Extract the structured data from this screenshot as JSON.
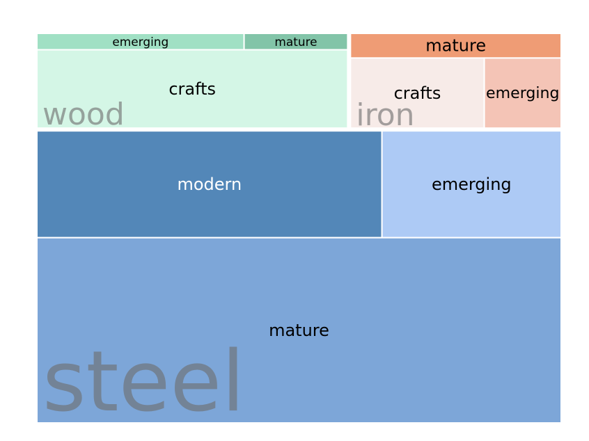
{
  "chart_data": {
    "type": "treemap",
    "title": "",
    "groups": [
      {
        "name": "wood",
        "children": [
          {
            "name": "emerging",
            "value": 1.7,
            "color": "#a0e0c4"
          },
          {
            "name": "mature",
            "value": 0.85,
            "color": "#82c4a8"
          },
          {
            "name": "crafts",
            "value": 12.2,
            "color": "#d4f6e6"
          }
        ]
      },
      {
        "name": "iron",
        "children": [
          {
            "name": "mature",
            "value": 2.6,
            "color": "#ef9c75"
          },
          {
            "name": "crafts",
            "value": 4.7,
            "color": "#f7ebe8"
          },
          {
            "name": "emerging",
            "value": 2.7,
            "color": "#f4c4b6"
          }
        ]
      },
      {
        "name": "steel",
        "children": [
          {
            "name": "modern",
            "value": 18.1,
            "color": "#5387b8"
          },
          {
            "name": "emerging",
            "value": 9.4,
            "color": "#adcaf5"
          },
          {
            "name": "mature",
            "value": 47.7,
            "color": "#7da6d8"
          }
        ]
      }
    ]
  }
}
